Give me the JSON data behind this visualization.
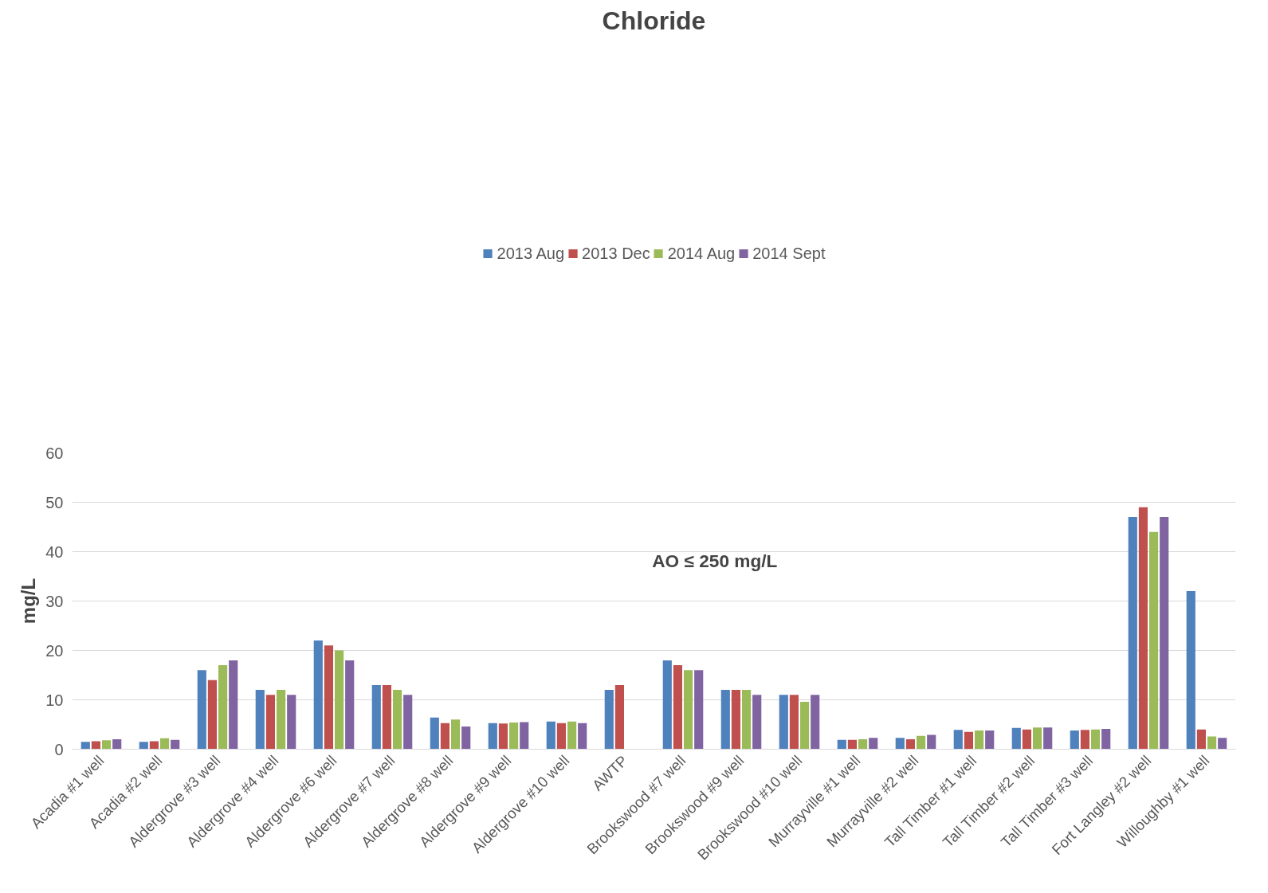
{
  "chart_data": {
    "type": "bar",
    "title": "Chloride",
    "ylabel": "mg/L",
    "annotations": [
      "AO ≤ 250 mg/L"
    ],
    "categories": [
      "Acadia #1 well",
      "Acadia #2 well",
      "Aldergrove #3 well",
      "Aldergrove #4 well",
      "Aldergrove #6 well",
      "Aldergrove #7 well",
      "Aldergrove #8 well",
      "Aldergrove #9 well",
      "Aldergrove #10 well",
      "AWTP",
      "Brookswood #7 well",
      "Brookswood #9 well",
      "Brookswood #10 well",
      "Murrayville #1 well",
      "Murrayville #2 well",
      "Tall Timber #1 well",
      "Tall Timber #2 well",
      "Tall Timber #3 well",
      "Fort Langley #2 well",
      "Willoughby #1 well"
    ],
    "series": [
      {
        "name": "2013 Aug",
        "color": "#4f81bd",
        "values": [
          1.5,
          1.5,
          16,
          12,
          22,
          13,
          6.4,
          5.3,
          5.6,
          12,
          18,
          12,
          11,
          1.9,
          2.3,
          3.9,
          4.3,
          3.8,
          47,
          32
        ]
      },
      {
        "name": "2013 Dec",
        "color": "#c0504d",
        "values": [
          1.6,
          1.6,
          14,
          11,
          21,
          13,
          5.3,
          5.2,
          5.3,
          13,
          17,
          12,
          11,
          1.9,
          2.0,
          3.5,
          4.0,
          3.9,
          49,
          4.0
        ]
      },
      {
        "name": "2014 Aug",
        "color": "#9bbb59",
        "values": [
          1.8,
          2.2,
          17,
          12,
          20,
          12,
          6.0,
          5.4,
          5.6,
          null,
          16,
          12,
          9.6,
          2.0,
          2.7,
          3.8,
          4.4,
          4.0,
          44,
          2.6
        ]
      },
      {
        "name": "2014 Sept",
        "color": "#8064a2",
        "values": [
          2.0,
          1.9,
          18,
          11,
          18,
          11,
          4.6,
          5.5,
          5.3,
          null,
          16,
          11,
          11,
          2.3,
          2.9,
          3.8,
          4.4,
          4.1,
          47,
          2.3
        ]
      }
    ],
    "ylim": [
      0,
      60
    ],
    "yticks": [
      0,
      10,
      20,
      30,
      40,
      50,
      60
    ],
    "grid": "y",
    "legend": "top"
  }
}
